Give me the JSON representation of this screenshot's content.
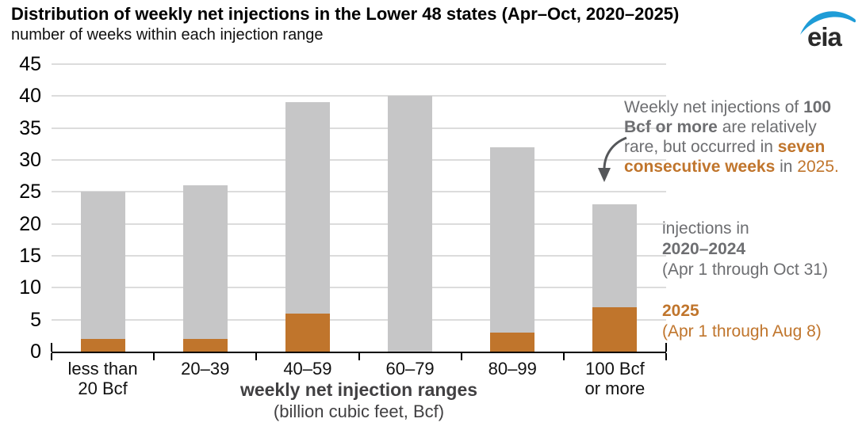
{
  "header": {
    "title": "Distribution of weekly net injections in the Lower 48 states (Apr–Oct, 2020–2025)",
    "subtitle": "number of weeks within each injection range",
    "logo_text": "eia"
  },
  "colors": {
    "bar_gray": "#c6c6c7",
    "bar_orange": "#c0752c",
    "gridline": "#dcdcdc",
    "axis": "#000000",
    "text_gray": "#6d6e71",
    "text_orange": "#c0752c",
    "logo_blue": "#1e9cd7",
    "arrow": "#55575a"
  },
  "chart_data": {
    "type": "bar",
    "stacked": true,
    "title": "Distribution of weekly net injections in the Lower 48 states (Apr–Oct, 2020–2025)",
    "subtitle": "number of weeks within each injection range",
    "categories": [
      "less than\n20 Bcf",
      "20–39",
      "40–59",
      "60–79",
      "80–99",
      "100 Bcf\nor more"
    ],
    "series": [
      {
        "name": "2025 (Apr 1 through Aug 8)",
        "color": "#c0752c",
        "values": [
          2,
          2,
          6,
          0,
          3,
          7
        ]
      },
      {
        "name": "injections in 2020–2024 (Apr 1 through Oct 31)",
        "color": "#c6c6c7",
        "values": [
          23,
          24,
          33,
          40,
          29,
          16
        ]
      }
    ],
    "totals": [
      25,
      26,
      39,
      40,
      32,
      23
    ],
    "xlabel": "weekly net injection ranges",
    "xlabel2": "(billion cubic feet, Bcf)",
    "ylabel": "number of weeks",
    "ylim": [
      0,
      45
    ],
    "ytick_step": 5,
    "grid": "horizontal",
    "legend_position": "right"
  },
  "annotation": {
    "lines": [
      [
        {
          "t": "Weekly net injections of ",
          "s": "g"
        },
        {
          "t": "100",
          "s": "gb"
        }
      ],
      [
        {
          "t": "Bcf or more",
          "s": "gb"
        },
        {
          "t": " are relatively",
          "s": "g"
        }
      ],
      [
        {
          "t": "rare, but occurred in ",
          "s": "g"
        },
        {
          "t": "seven",
          "s": "ob"
        }
      ],
      [
        {
          "t": "consecutive weeks",
          "s": "ob"
        },
        {
          "t": " in ",
          "s": "g"
        },
        {
          "t": "2025.",
          "s": "o"
        }
      ]
    ]
  },
  "legend": {
    "gray": {
      "intro": "injections in",
      "years": "2020–2024",
      "range": "(Apr 1 through Oct 31)"
    },
    "orange": {
      "years": "2025",
      "range": "(Apr 1 through Aug 8)"
    }
  }
}
